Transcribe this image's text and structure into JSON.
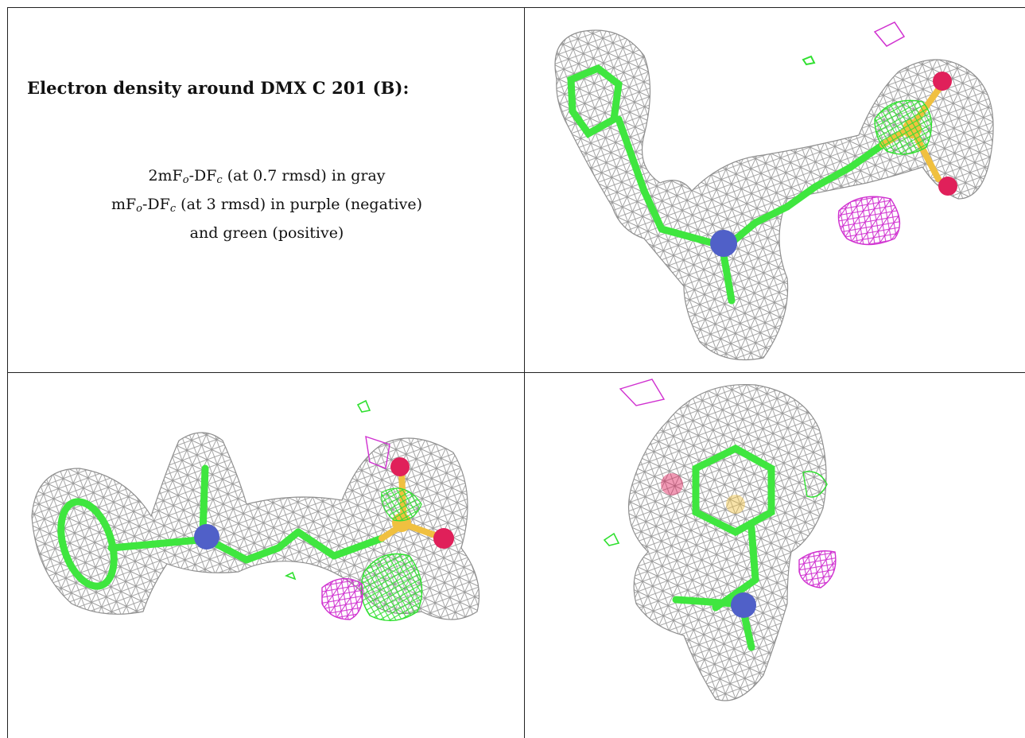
{
  "heading": "Electron density around DMX C 201 (B):",
  "legend": {
    "line1": {
      "pre": "2mF",
      "sub1": "o",
      "mid": "-DF",
      "sub2": "c",
      "post": " (at 0.7 rmsd) in gray"
    },
    "line2": {
      "pre": "mF",
      "sub1": "o",
      "mid": "-DF",
      "sub2": "c",
      "post": " (at 3 rmsd) in purple (negative)"
    },
    "line3": "and green (positive)"
  },
  "colors": {
    "mesh_gray": "#8f8f8f",
    "carbon_green": "#3fe63f",
    "nitrogen_blue": "#5060c8",
    "oxygen_red": "#e0205a",
    "sulfur_yellow": "#f0c040",
    "negative_purple": "#d030d0",
    "positive_green": "#30e030"
  },
  "views": [
    {
      "id": "view-top-right",
      "icon": "molecule-density-view-1"
    },
    {
      "id": "view-bottom-left",
      "icon": "molecule-density-view-2"
    },
    {
      "id": "view-bottom-right",
      "icon": "molecule-density-view-3"
    }
  ]
}
